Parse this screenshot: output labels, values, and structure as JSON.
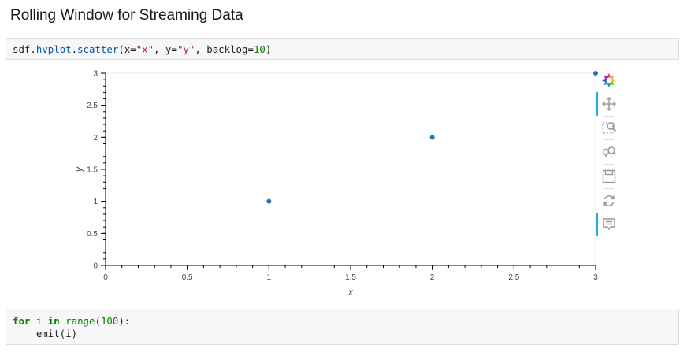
{
  "page": {
    "heading": "Rolling Window for Streaming Data"
  },
  "cells": {
    "cell1": [
      [
        {
          "t": "sdf",
          "c": "plain"
        },
        {
          "t": ".",
          "c": "plain"
        },
        {
          "t": "hvplot",
          "c": "attr"
        },
        {
          "t": ".",
          "c": "plain"
        },
        {
          "t": "scatter",
          "c": "attr"
        },
        {
          "t": "(x=",
          "c": "plain"
        },
        {
          "t": "\"x\"",
          "c": "str"
        },
        {
          "t": ", y=",
          "c": "plain"
        },
        {
          "t": "\"y\"",
          "c": "str"
        },
        {
          "t": ", backlog=",
          "c": "plain"
        },
        {
          "t": "10",
          "c": "num"
        },
        {
          "t": ")",
          "c": "plain"
        }
      ]
    ],
    "cell2": [
      [
        {
          "t": "for",
          "c": "kw"
        },
        {
          "t": " i ",
          "c": "plain"
        },
        {
          "t": "in",
          "c": "kw"
        },
        {
          "t": " ",
          "c": "plain"
        },
        {
          "t": "range",
          "c": "fn"
        },
        {
          "t": "(",
          "c": "plain"
        },
        {
          "t": "100",
          "c": "num"
        },
        {
          "t": "):",
          "c": "plain"
        }
      ],
      [
        {
          "t": "    emit(i)",
          "c": "plain"
        }
      ]
    ]
  },
  "chart_data": {
    "type": "scatter",
    "x": [
      1,
      2,
      3
    ],
    "y": [
      1,
      2,
      3
    ],
    "xlim": [
      0,
      3
    ],
    "ylim": [
      0,
      3
    ],
    "xticks": [
      "0",
      "0.5",
      "1",
      "1.5",
      "2",
      "2.5",
      "3"
    ],
    "yticks": [
      "0",
      "0.5",
      "1",
      "1.5",
      "2",
      "2.5",
      "3"
    ],
    "xlabel": "x",
    "ylabel": "y",
    "point_color": "#1f77b4",
    "grid": false
  },
  "toolbar": {
    "tools": [
      {
        "name": "bokeh-logo-icon",
        "active": false
      },
      {
        "name": "pan-icon",
        "active": true
      },
      {
        "name": "box-zoom-icon",
        "active": false
      },
      {
        "name": "wheel-zoom-icon",
        "active": false
      },
      {
        "name": "save-icon",
        "active": false
      },
      {
        "name": "reset-icon",
        "active": false
      },
      {
        "name": "hover-icon",
        "active": true
      }
    ],
    "accent_color": "#26aae1",
    "icon_color": "#9a9a9a"
  }
}
